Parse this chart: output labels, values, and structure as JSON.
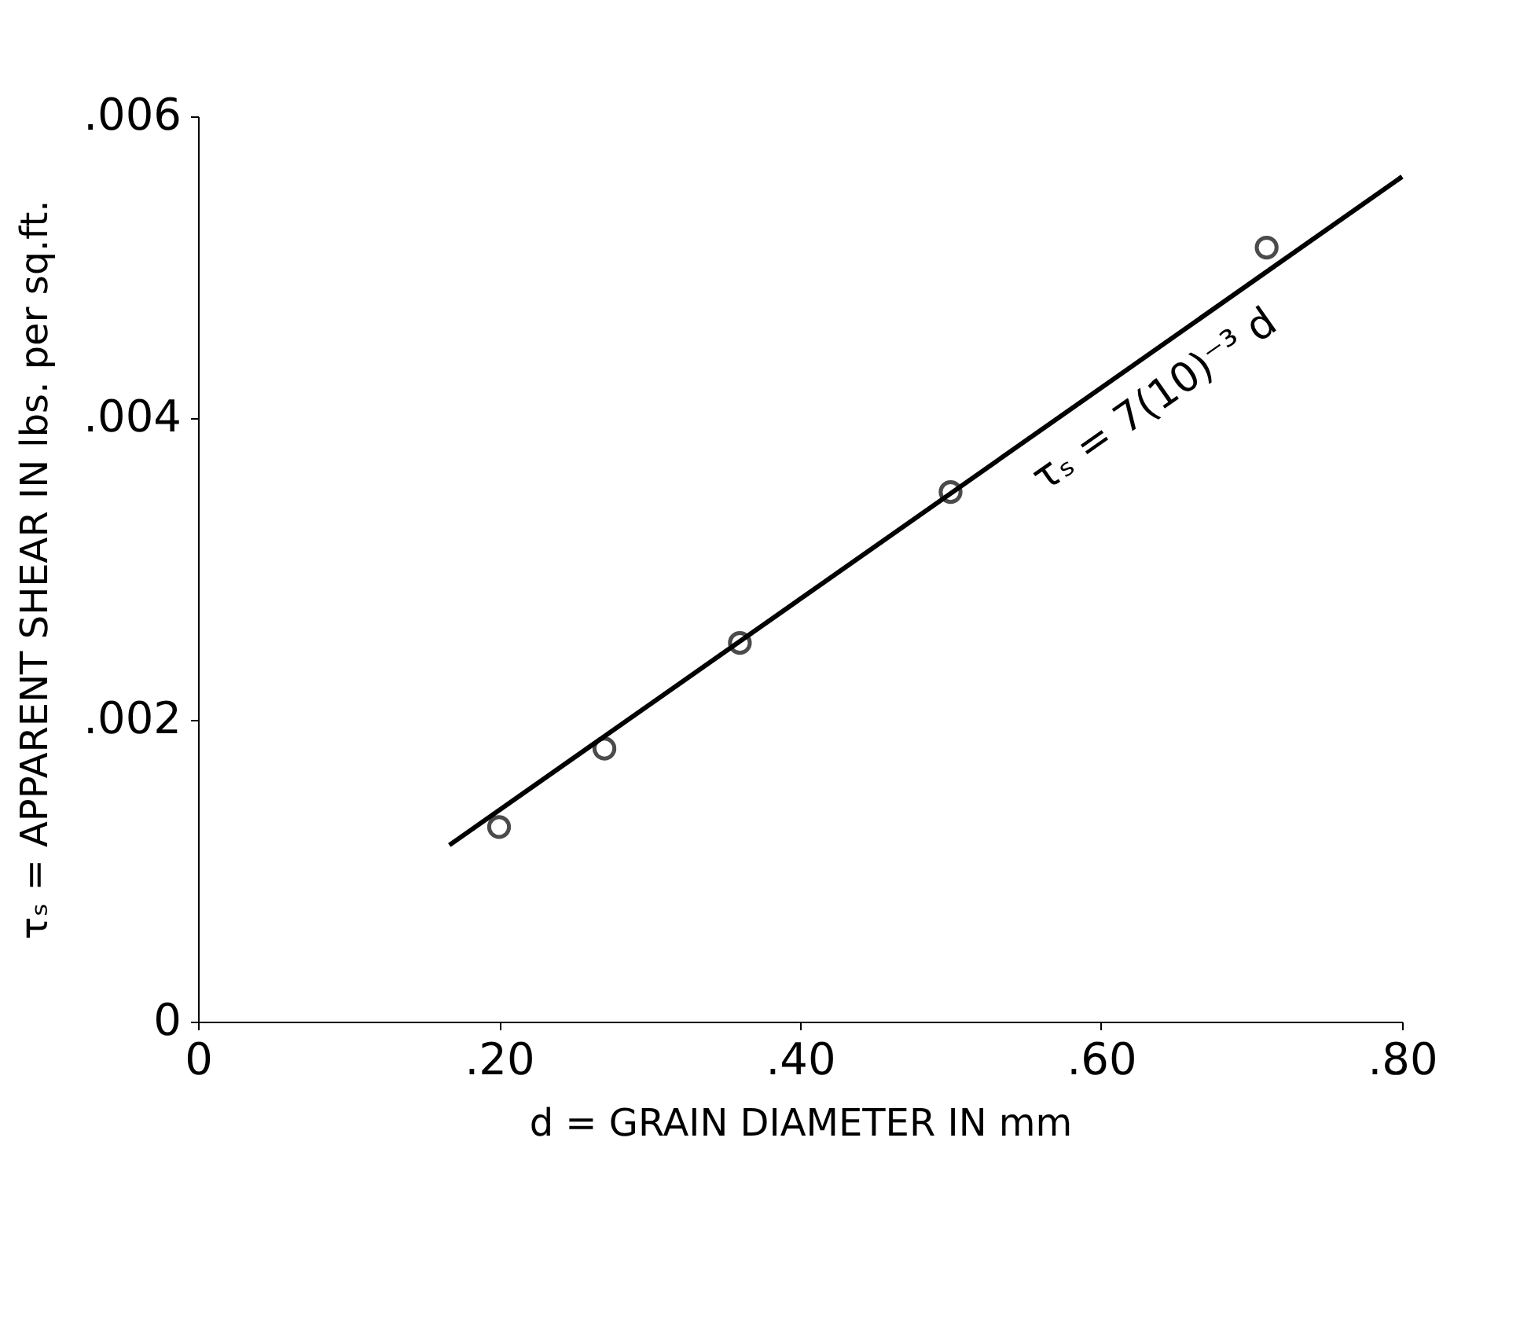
{
  "chart_data": {
    "type": "scatter",
    "xlabel": "d = GRAIN DIAMETER IN mm",
    "ylabel": "τₛ = APPARENT SHEAR IN lbs. per sq.ft.",
    "x": [
      0.2,
      0.27,
      0.36,
      0.5,
      0.71
    ],
    "series": [
      {
        "color": "#000000",
        "marker": "circle",
        "values": [
          0.00129,
          0.00181,
          0.00251,
          0.00351,
          0.00513
        ]
      },
      {
        "type": "line",
        "color": "#000000",
        "marker": "none",
        "line_style": "solid",
        "x": [
          0.167,
          0.8
        ],
        "values": [
          0.00117,
          0.0056
        ]
      }
    ],
    "annotations": [
      {
        "text": "τₛ = 7(10)⁻³ d",
        "x": 0.62,
        "y": 0.00434
      }
    ],
    "xlim": [
      0,
      0.8
    ],
    "xticks": [
      {
        "value": 0,
        "label": "0"
      },
      {
        "value": 0.2,
        "label": ".20"
      },
      {
        "value": 0.4,
        "label": ".40"
      },
      {
        "value": 0.6,
        "label": ".60"
      },
      {
        "value": 0.8,
        "label": ".80"
      }
    ],
    "ylim": [
      0,
      0.006
    ],
    "yticks": [
      {
        "value": 0,
        "label": "0"
      },
      {
        "value": 0.002,
        "label": ".002"
      },
      {
        "value": 0.004,
        "label": ".004"
      },
      {
        "value": 0.006,
        "label": ".006"
      }
    ],
    "grid": false
  }
}
